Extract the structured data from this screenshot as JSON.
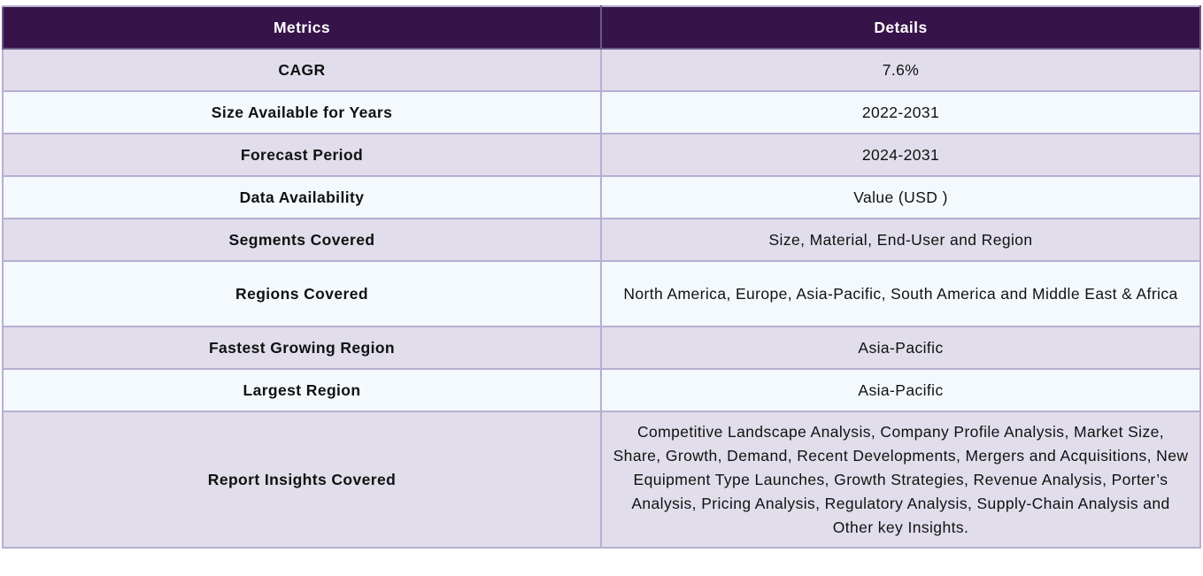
{
  "table": {
    "headers": {
      "metrics": "Metrics",
      "details": "Details"
    },
    "rows": [
      {
        "metric": "CAGR",
        "detail": "7.6%"
      },
      {
        "metric": "Size Available for Years",
        "detail": "2022-2031"
      },
      {
        "metric": "Forecast Period",
        "detail": "2024-2031"
      },
      {
        "metric": "Data Availability",
        "detail": "Value (USD )"
      },
      {
        "metric": "Segments Covered",
        "detail": "Size, Material, End-User and Region"
      },
      {
        "metric": "Regions Covered",
        "detail": "North America, Europe, Asia-Pacific, South America and Middle East & Africa"
      },
      {
        "metric": "Fastest Growing Region",
        "detail": "Asia-Pacific"
      },
      {
        "metric": "Largest Region",
        "detail": "Asia-Pacific"
      },
      {
        "metric": "Report Insights Covered",
        "detail": "Competitive Landscape Analysis, Company Profile Analysis, Market Size, Share, Growth, Demand, Recent Developments, Mergers and Acquisitions, New Equipment Type Launches, Growth Strategies, Revenue Analysis, Porter’s Analysis, Pricing Analysis, Regulatory Analysis, Supply-Chain Analysis and Other key Insights."
      }
    ]
  },
  "colors": {
    "header_bg": "#361349",
    "row_odd_bg": "#e1ddea",
    "row_even_bg": "#f3f9fc",
    "border": "#b7aed2"
  }
}
